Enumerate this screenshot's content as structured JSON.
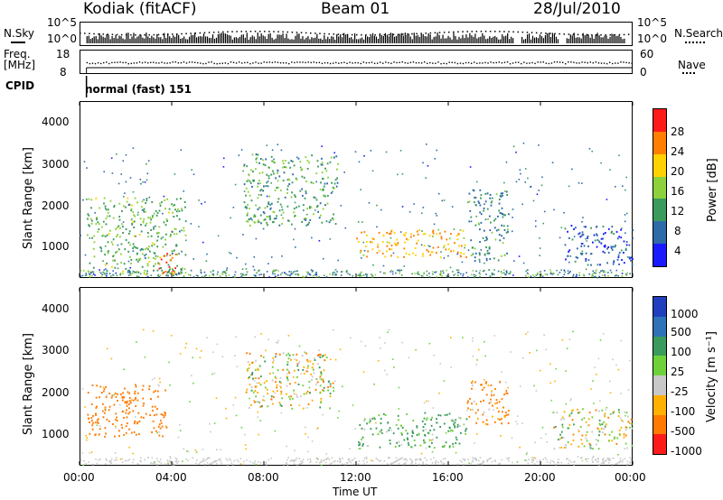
{
  "header": {
    "station": "Kodiak (fitACF)",
    "beam": "Beam 01",
    "date": "28/Jul/2010"
  },
  "noise_panel": {
    "left_label": "N.Sky",
    "right_label": "N.Search",
    "left_ticks": [
      "10^5",
      "10^0"
    ],
    "right_ticks": [
      "10^5",
      "10^0"
    ]
  },
  "freq_panel": {
    "left_label_1": "Freq.",
    "left_label_2": "[MHz]",
    "right_label": "Nave",
    "left_ticks": [
      "18",
      "8"
    ],
    "right_ticks": [
      "60",
      "0"
    ]
  },
  "cpid": {
    "label": "CPID",
    "value": "normal (fast) 151"
  },
  "power_panel": {
    "ylabel": "Slant Range [km]",
    "yticks": [
      "4000",
      "3000",
      "2000",
      "1000"
    ],
    "cbar_label": "Power [dB]",
    "cbar_ticks": [
      "28",
      "24",
      "20",
      "16",
      "12",
      "8",
      "4"
    ],
    "cbar_colors": [
      "#ff1a1a",
      "#ff7f00",
      "#ffd200",
      "#8dd23c",
      "#3a9b5c",
      "#2e6aa8",
      "#1a1aff"
    ]
  },
  "velocity_panel": {
    "ylabel": "Slant Range [km]",
    "yticks": [
      "4000",
      "3000",
      "2000",
      "1000"
    ],
    "cbar_label": "Velocity [m s⁻¹]",
    "cbar_ticks": [
      "1000",
      "500",
      "100",
      "25",
      "-25",
      "-100",
      "-500",
      "-1000"
    ],
    "cbar_colors": [
      "#1f3fbf",
      "#2f72b8",
      "#3a9b5c",
      "#6fd13a",
      "#c8c8c8",
      "#ffb000",
      "#ff7a00",
      "#ff1a1a"
    ]
  },
  "xaxis": {
    "label": "Time UT",
    "ticks": [
      "00:00",
      "04:00",
      "08:00",
      "12:00",
      "16:00",
      "20:00",
      "00:00"
    ]
  },
  "chart_data": {
    "type": "heatmap",
    "title": "Kodiak (fitACF)",
    "subtitle": "Beam 01",
    "date": "28/Jul/2010",
    "xlabel": "Time UT",
    "ylabel": "Slant Range [km]",
    "xlim": [
      0,
      24
    ],
    "ylim": [
      180,
      4600
    ],
    "power_range_dB": [
      0,
      32
    ],
    "velocity_range_ms": [
      -1000,
      1000
    ],
    "power_echo_regions": [
      {
        "t": [
          0.3,
          4.6
        ],
        "r": [
          200,
          2200
        ],
        "dB": 14
      },
      {
        "t": [
          3.4,
          4.4
        ],
        "r": [
          300,
          800
        ],
        "dB": 28
      },
      {
        "t": [
          7.1,
          11.2
        ],
        "r": [
          1500,
          3300
        ],
        "dB": 12
      },
      {
        "t": [
          12.0,
          16.8
        ],
        "r": [
          700,
          1400
        ],
        "dB": 22
      },
      {
        "t": [
          16.8,
          18.6
        ],
        "r": [
          600,
          2400
        ],
        "dB": 10
      },
      {
        "t": [
          21.0,
          24.0
        ],
        "r": [
          500,
          1500
        ],
        "dB": 6
      }
    ],
    "velocity_echo_regions": [
      {
        "t": [
          0.3,
          3.8
        ],
        "r": [
          900,
          2200
        ],
        "v": -300
      },
      {
        "t": [
          7.1,
          11.0
        ],
        "r": [
          1600,
          3000
        ],
        "v": 0
      },
      {
        "t": [
          12.0,
          16.8
        ],
        "r": [
          600,
          1500
        ],
        "v": 150
      },
      {
        "t": [
          16.8,
          18.6
        ],
        "r": [
          1200,
          2300
        ],
        "v": -150
      },
      {
        "t": [
          20.5,
          24.0
        ],
        "r": [
          600,
          1600
        ],
        "v": 0
      }
    ]
  }
}
